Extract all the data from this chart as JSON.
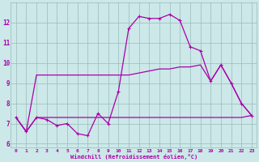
{
  "xlabel": "Windchill (Refroidissement éolien,°C)",
  "xlim": [
    -0.5,
    23.5
  ],
  "ylim": [
    5.8,
    13.0
  ],
  "yticks": [
    6,
    7,
    8,
    9,
    10,
    11,
    12
  ],
  "xticks": [
    0,
    1,
    2,
    3,
    4,
    5,
    6,
    7,
    8,
    9,
    10,
    11,
    12,
    13,
    14,
    15,
    16,
    17,
    18,
    19,
    20,
    21,
    22,
    23
  ],
  "bg_color": "#cce8e8",
  "line_color": "#aa00aa",
  "grid_color": "#99bbbb",
  "line1_x": [
    0,
    1,
    2,
    3,
    4,
    5,
    6,
    7,
    8,
    9,
    10,
    11,
    12,
    13,
    14,
    15,
    16,
    17,
    18,
    19,
    20,
    21,
    22,
    23
  ],
  "line1_y": [
    7.3,
    6.6,
    7.3,
    7.2,
    6.9,
    7.0,
    6.5,
    6.4,
    7.5,
    7.0,
    8.6,
    11.7,
    12.3,
    12.2,
    12.2,
    12.4,
    12.1,
    10.8,
    10.6,
    9.1,
    9.9,
    9.0,
    8.0,
    7.4
  ],
  "line2_x": [
    0,
    1,
    2,
    3,
    4,
    5,
    6,
    7,
    8,
    9,
    10,
    11,
    12,
    13,
    14,
    15,
    16,
    17,
    18,
    19,
    20,
    21,
    22,
    23
  ],
  "line2_y": [
    7.3,
    6.6,
    9.4,
    9.4,
    9.4,
    9.4,
    9.4,
    9.4,
    9.4,
    9.4,
    9.4,
    9.4,
    9.5,
    9.6,
    9.7,
    9.7,
    9.8,
    9.8,
    9.9,
    9.1,
    9.9,
    9.0,
    8.0,
    7.4
  ],
  "line3_x": [
    0,
    1,
    2,
    3,
    4,
    5,
    6,
    7,
    8,
    9,
    10,
    11,
    12,
    13,
    14,
    15,
    16,
    17,
    18,
    19,
    20,
    21,
    22,
    23
  ],
  "line3_y": [
    7.3,
    6.6,
    7.3,
    7.3,
    7.3,
    7.3,
    7.3,
    7.3,
    7.3,
    7.3,
    7.3,
    7.3,
    7.3,
    7.3,
    7.3,
    7.3,
    7.3,
    7.3,
    7.3,
    7.3,
    7.3,
    7.3,
    7.3,
    7.4
  ]
}
